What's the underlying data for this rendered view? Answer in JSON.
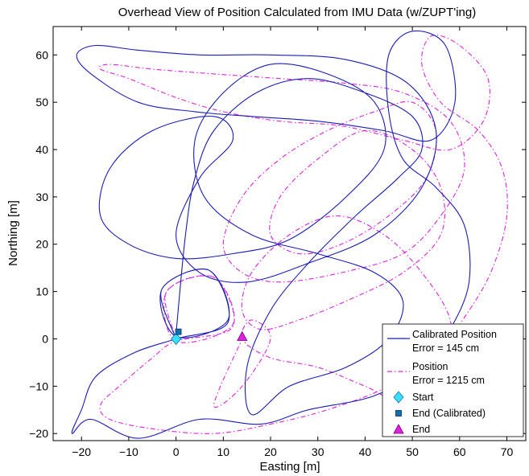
{
  "chart_data": {
    "type": "line",
    "title": "Overhead View of Position Calculated from IMU Data (w/ZUPT'ing)",
    "xlabel": "Easting [m]",
    "ylabel": "Northing [m]",
    "xlim": [
      -26,
      74
    ],
    "ylim": [
      -21.5,
      66
    ],
    "xticks": [
      -20,
      -10,
      0,
      10,
      20,
      30,
      40,
      50,
      60,
      70
    ],
    "yticks": [
      -20,
      -10,
      0,
      10,
      20,
      30,
      40,
      50,
      60
    ],
    "grid": false,
    "legend_position": "bottom-right",
    "colors": {
      "calibrated": "#1c1cb4",
      "uncalibrated": "#e020e0",
      "start": "#38e0ff",
      "end_calibrated": "#0d6fae",
      "end": "#e020e0"
    },
    "series": [
      {
        "name": "Calibrated Position Error = 145 cm",
        "legend_lines": [
          "Calibrated Position",
          "Error = 145 cm"
        ],
        "style": "solid",
        "x": [
          0,
          -3,
          7,
          11,
          0,
          -3,
          7,
          11,
          0,
          -9,
          -17,
          -20,
          -22,
          -18,
          -8,
          5,
          18,
          28,
          42,
          52,
          58,
          62,
          61,
          55,
          48,
          45,
          45,
          50,
          57,
          59,
          54,
          44,
          30,
          16,
          4,
          -8,
          -18,
          -21,
          -17,
          -8,
          5,
          20,
          36,
          49,
          55,
          52,
          42,
          28,
          15,
          5,
          0,
          5,
          12,
          8,
          -5,
          -14,
          -16,
          -10,
          0,
          12,
          24,
          36,
          44,
          42,
          32,
          20,
          10,
          4,
          6,
          16,
          30,
          42,
          48,
          45,
          36,
          24,
          16,
          15,
          20,
          28,
          38,
          47,
          52,
          50,
          40,
          28,
          17,
          8,
          4,
          2,
          0
        ],
        "y": [
          0,
          10.5,
          14.5,
          4,
          0.5,
          10.5,
          14.5,
          3.5,
          0,
          -3,
          -8,
          -15,
          -20,
          -17,
          -21,
          -17,
          -18,
          -15,
          -12,
          -6,
          2,
          12,
          24,
          32,
          38,
          48,
          60,
          65,
          62,
          50,
          42,
          44,
          46,
          47,
          48,
          50,
          56,
          60,
          62,
          61,
          60,
          60,
          59,
          54,
          44,
          32,
          22,
          16,
          12,
          14,
          22,
          34,
          42,
          47,
          44,
          36,
          26,
          20,
          17,
          18,
          21,
          30,
          40,
          50,
          56,
          58,
          52,
          42,
          30,
          22,
          18,
          14,
          8,
          0,
          -6,
          -10,
          -16,
          -6,
          6,
          16,
          26,
          34,
          40,
          47,
          52,
          55,
          52,
          44,
          34,
          22,
          1
        ]
      },
      {
        "name": "Position Error = 1215 cm",
        "legend_lines": [
          "Position",
          "Error = 1215 cm"
        ],
        "style": "dash-dot",
        "x": [
          0,
          -2,
          8,
          12,
          0,
          -2,
          8,
          12,
          0,
          -5,
          -12,
          -16,
          -14,
          -5,
          8,
          20,
          32,
          45,
          55,
          62,
          67,
          70,
          69,
          64,
          56,
          52,
          54,
          60,
          66,
          65,
          58,
          48,
          35,
          22,
          10,
          0,
          -10,
          -16,
          -14,
          -5,
          8,
          22,
          36,
          48,
          58,
          61,
          56,
          48,
          35,
          22,
          14,
          10,
          14,
          22,
          32,
          42,
          50,
          55,
          53,
          45,
          35,
          26,
          20,
          22,
          30,
          40,
          50,
          56,
          56,
          48,
          36,
          26,
          18,
          14,
          16,
          24,
          34,
          44,
          52,
          58,
          57,
          50,
          40,
          30,
          20,
          14,
          16,
          20,
          14,
          8,
          14
        ],
        "y": [
          0,
          10,
          13,
          3,
          -0.5,
          10,
          13,
          2.5,
          -0.5,
          -4,
          -10,
          -14,
          -17,
          -19,
          -20,
          -18,
          -15,
          -10,
          -3,
          6,
          15,
          26,
          36,
          44,
          50,
          58,
          64,
          62,
          55,
          46,
          40,
          42,
          45,
          46,
          48,
          51,
          55,
          57,
          58,
          57,
          56,
          55,
          54,
          52,
          46,
          36,
          26,
          18,
          14,
          12,
          14,
          20,
          30,
          38,
          44,
          48,
          50,
          44,
          34,
          26,
          20,
          18,
          22,
          30,
          38,
          44,
          40,
          32,
          22,
          14,
          8,
          4,
          2,
          6,
          14,
          22,
          26,
          22,
          14,
          4,
          -6,
          -14,
          -10,
          -6,
          -4,
          0,
          4,
          0,
          -10,
          -14,
          0
        ]
      }
    ],
    "markers": [
      {
        "name": "Start",
        "shape": "diamond",
        "x": 0,
        "y": 0
      },
      {
        "name": "End (Calibrated)",
        "shape": "square",
        "x": 0.5,
        "y": 1.5
      },
      {
        "name": "End",
        "shape": "triangle",
        "x": 14,
        "y": 0.5
      }
    ]
  }
}
